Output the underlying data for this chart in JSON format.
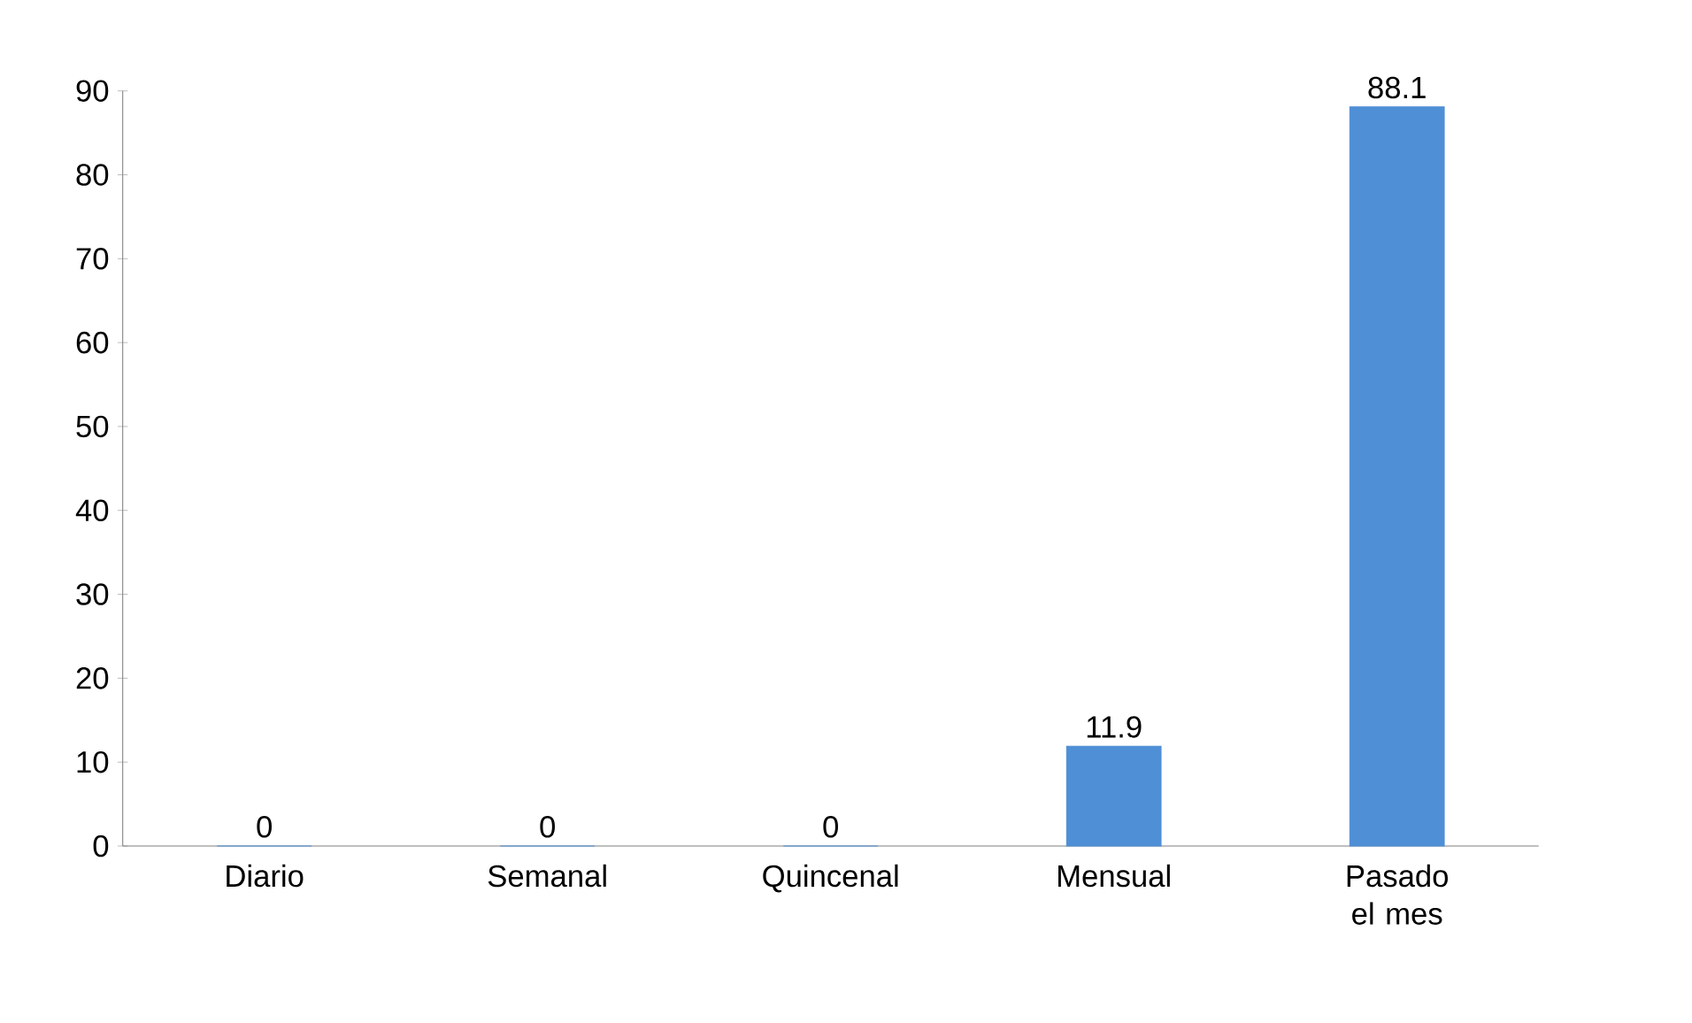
{
  "chart_data": {
    "type": "bar",
    "categories": [
      "Diario",
      "Semanal",
      "Quincenal",
      "Mensual",
      "Pasado el mes"
    ],
    "values": [
      0,
      0,
      0,
      11.9,
      88.1
    ],
    "color": "#4f8fd6",
    "ylim": [
      0,
      90
    ],
    "yticks": [
      0,
      10,
      20,
      30,
      40,
      50,
      60,
      70,
      80,
      90
    ],
    "data_labels": true,
    "grid": false
  }
}
